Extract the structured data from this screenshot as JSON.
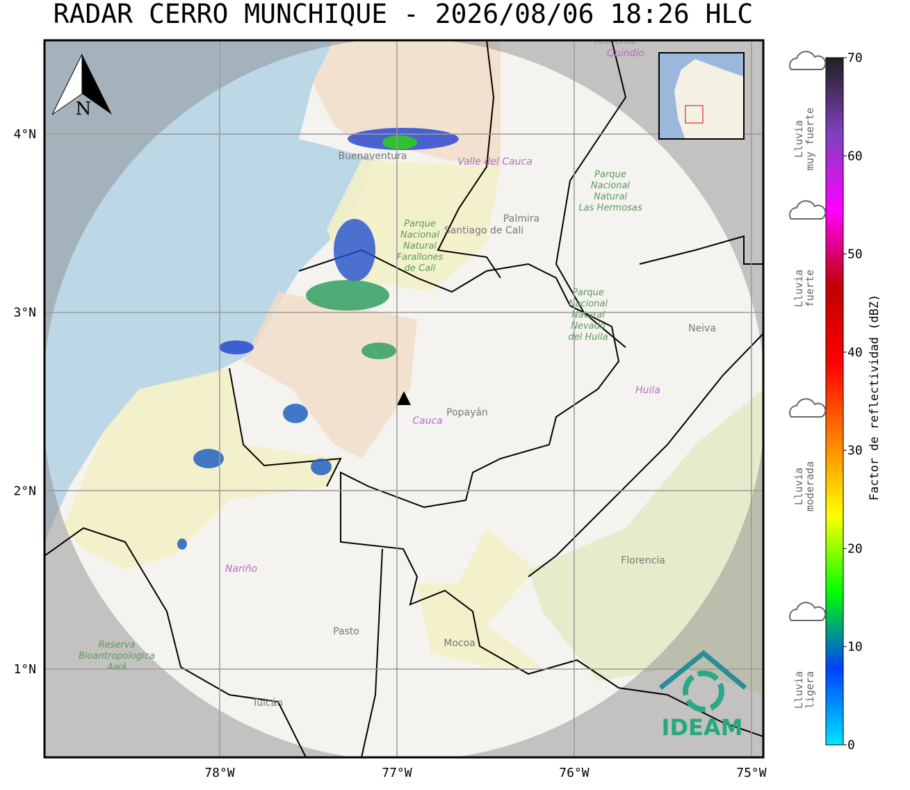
{
  "title": "RADAR CERRO MUNCHIQUE - 2026/08/06 18:26 HLC",
  "map": {
    "xlim": [
      -78.988,
      -74.933
    ],
    "ylim": [
      0.505,
      4.526
    ],
    "xticks": [
      {
        "value": -78,
        "label": "78°W"
      },
      {
        "value": -77,
        "label": "77°W"
      },
      {
        "value": -76,
        "label": "76°W"
      },
      {
        "value": -75,
        "label": "75°W"
      }
    ],
    "yticks": [
      {
        "value": 1,
        "label": "1°N"
      },
      {
        "value": 2,
        "label": "2°N"
      },
      {
        "value": 3,
        "label": "3°N"
      },
      {
        "value": 4,
        "label": "4°N"
      }
    ],
    "grid": true,
    "north": "N",
    "logo": "IDEAM",
    "places": [
      "Santiago de Cali",
      "Palmira",
      "Popayán",
      "Cauca",
      "Neiva",
      "Huila",
      "Nariño",
      "Pasto",
      "Mocoa",
      "Florencia",
      "Tulcán",
      "Valle del Cauca",
      "Buenaventura",
      "Armenia",
      "Quindío"
    ],
    "parks": [
      [
        "Parque",
        "Nacional",
        "Natural",
        "Farallones",
        "de Cali"
      ],
      [
        "Parque",
        "Nacional",
        "Natural",
        "Las Hermosas"
      ],
      [
        "Parque",
        "Nacional",
        "Natural",
        "Nevado",
        "del Huila"
      ],
      [
        "Reserva",
        "Bioantropologica",
        "Awá"
      ]
    ]
  },
  "colorbar": {
    "lim": [
      0,
      70
    ],
    "ticks": [
      0,
      10,
      20,
      30,
      40,
      50,
      60,
      70
    ],
    "label": "Factor de reflectividad (dBZ)",
    "colors": [
      "#00e5ff",
      "#0040ff",
      "#00ff00",
      "#ffff00",
      "#ff8000",
      "#ff0000",
      "#c00000",
      "#ff00ff",
      "#8040c0",
      "#202020"
    ]
  },
  "rain_legend": [
    [
      "Lluvia",
      "muy fuerte"
    ],
    [
      "Lluvia",
      "fuerte"
    ],
    [
      "Lluvia",
      "moderada"
    ],
    [
      "Lluvia",
      "ligera"
    ]
  ]
}
